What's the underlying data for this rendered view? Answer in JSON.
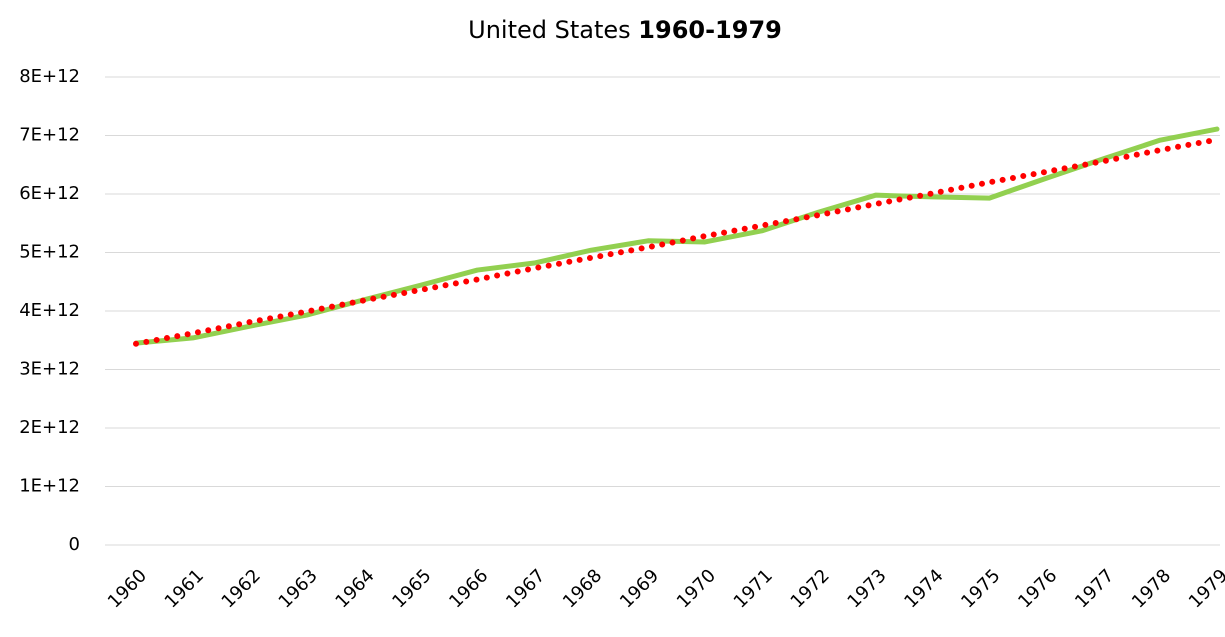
{
  "chart_data": {
    "type": "line",
    "title": "United States",
    "title_emphasis": "1960-1979",
    "categories": [
      "1960",
      "1961",
      "1962",
      "1963",
      "1964",
      "1965",
      "1966",
      "1967",
      "1968",
      "1969",
      "1970",
      "1971",
      "1972",
      "1973",
      "1974",
      "1975",
      "1976",
      "1977",
      "1978",
      "1979"
    ],
    "series": [
      {
        "color": "#92d050",
        "style": "solid",
        "values": [
          3450000000000,
          3540000000000,
          3740000000000,
          3930000000000,
          4190000000000,
          4440000000000,
          4700000000000,
          4820000000000,
          5040000000000,
          5200000000000,
          5180000000000,
          5370000000000,
          5690000000000,
          5980000000000,
          5950000000000,
          5930000000000,
          6270000000000,
          6600000000000,
          6920000000000,
          7110000000000
        ]
      },
      {
        "color": "#ff0000",
        "style": "dotted",
        "values": [
          3440000000000,
          3620000000000,
          3810000000000,
          3990000000000,
          4180000000000,
          4360000000000,
          4540000000000,
          4730000000000,
          4910000000000,
          5090000000000,
          5280000000000,
          5460000000000,
          5640000000000,
          5830000000000,
          6010000000000,
          6200000000000,
          6380000000000,
          6560000000000,
          6750000000000,
          6930000000000
        ]
      }
    ],
    "ylim": [
      0,
      8000000000000
    ],
    "yticks": [
      0,
      {
        "value": 1000000000000,
        "label": "1E+12"
      },
      {
        "value": 2000000000000,
        "label": "2E+12"
      },
      {
        "value": 3000000000000,
        "label": "3E+12"
      },
      {
        "value": 4000000000000,
        "label": "4E+12"
      },
      {
        "value": 5000000000000,
        "label": "5E+12"
      },
      {
        "value": 6000000000000,
        "label": "6E+12"
      },
      {
        "value": 7000000000000,
        "label": "7E+12"
      },
      {
        "value": 8000000000000,
        "label": "8E+12"
      }
    ],
    "grid": true
  }
}
